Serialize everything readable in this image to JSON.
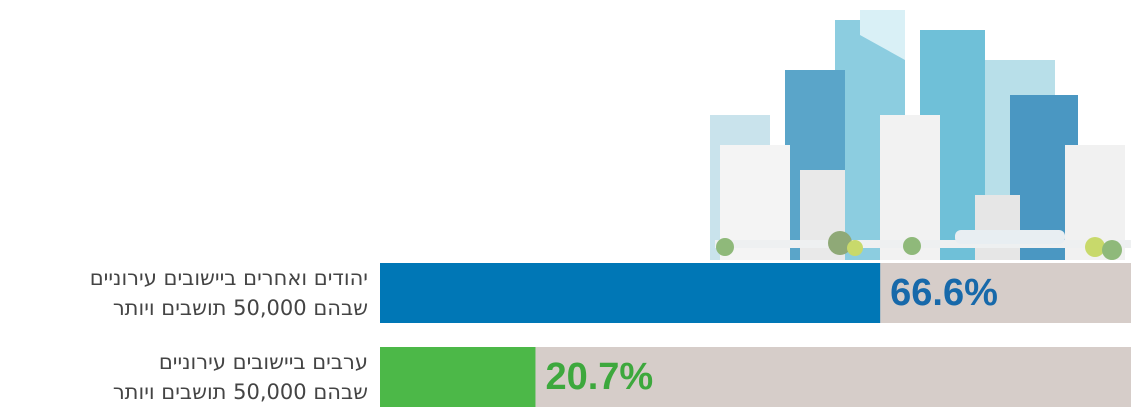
{
  "chart_data": {
    "type": "bar",
    "orientation": "horizontal",
    "categories": [
      "יהודים ואחרים ביישובים עירוניים\nשבהם 50,000 תושבים ויותר",
      "ערבים ביישובים עירוניים\nשבהם 50,000 תושבים ויותר"
    ],
    "values": [
      66.6,
      20.7
    ],
    "value_labels": [
      "66.6%",
      "20.7%"
    ],
    "colors": [
      "#0077b6",
      "#4cb848"
    ],
    "label_colors": [
      "#1769aa",
      "#3da83d"
    ],
    "track_color": "#d6cdc9",
    "xlim": [
      0,
      100
    ]
  }
}
